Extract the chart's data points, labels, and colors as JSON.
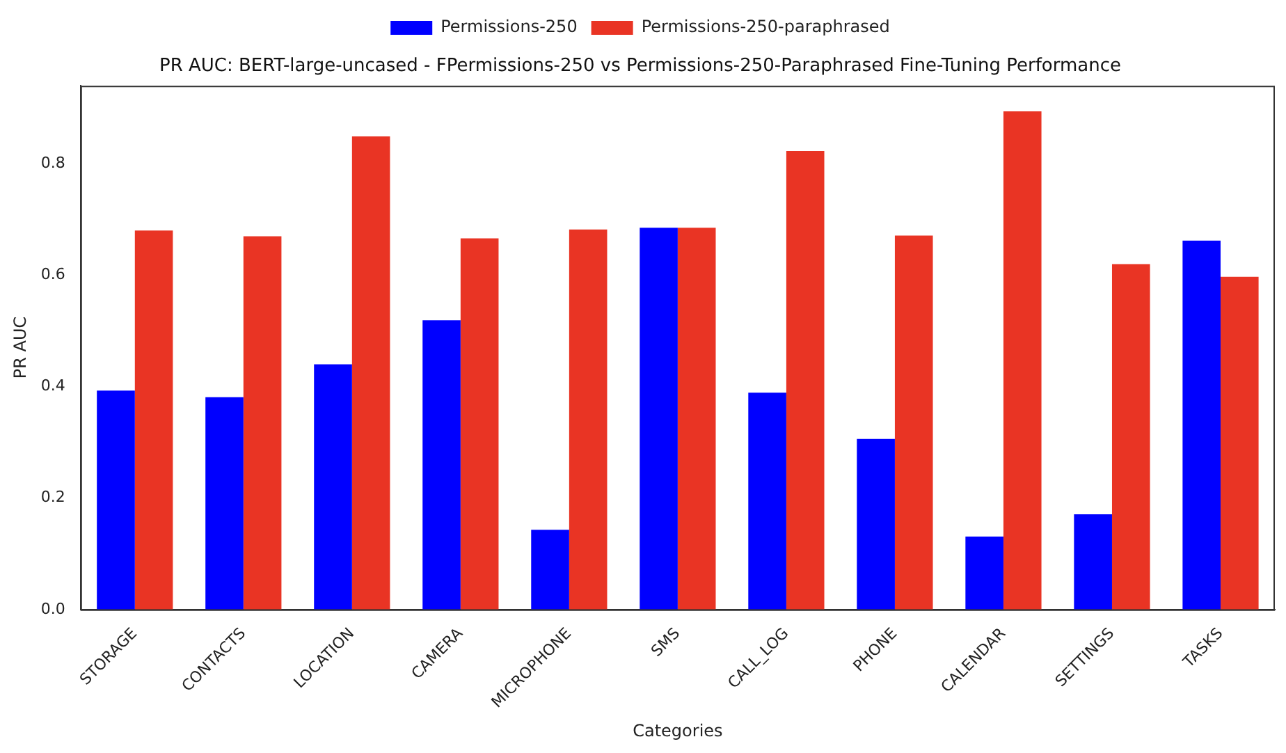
{
  "chart_data": {
    "type": "bar",
    "title": "PR AUC: BERT-large-uncased - FPermissions-250 vs Permissions-250-Paraphrased Fine-Tuning Performance",
    "xlabel": "Categories",
    "ylabel": "PR AUC",
    "categories": [
      "STORAGE",
      "CONTACTS",
      "LOCATION",
      "CAMERA",
      "MICROPHONE",
      "SMS",
      "CALL_LOG",
      "PHONE",
      "CALENDAR",
      "SETTINGS",
      "TASKS"
    ],
    "series": [
      {
        "name": "Permissions-250",
        "color": "#0000ff",
        "values": [
          0.393,
          0.381,
          0.44,
          0.519,
          0.143,
          0.685,
          0.389,
          0.306,
          0.131,
          0.171,
          0.662
        ]
      },
      {
        "name": "Permissions-250-paraphrased",
        "color": "#e93424",
        "values": [
          0.68,
          0.67,
          0.849,
          0.666,
          0.682,
          0.685,
          0.823,
          0.671,
          0.894,
          0.62,
          0.597
        ]
      }
    ],
    "ylim": [
      0,
      0.94
    ],
    "yticks": [
      {
        "value": 0,
        "label": "0.0"
      },
      0.2,
      0.4,
      0.6,
      0.8
    ],
    "grid": false,
    "legend": "top"
  }
}
